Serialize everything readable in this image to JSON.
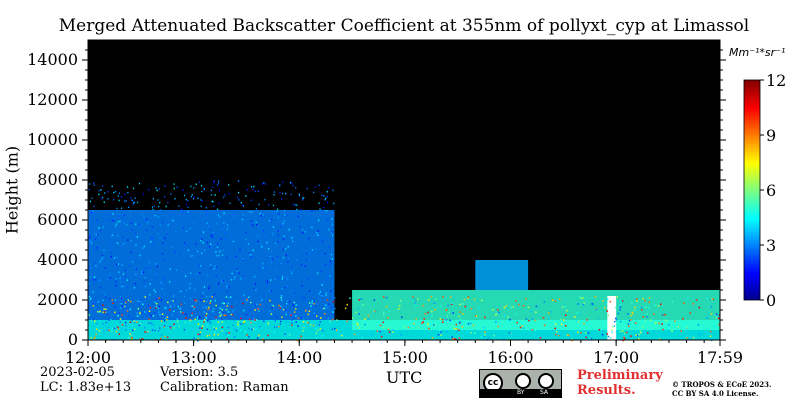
{
  "chart_data": {
    "type": "heatmap",
    "title": "Merged Attenuated Backscatter Coefficient at 355nm of pollyxt_cyp at Limassol",
    "xlabel": "UTC",
    "ylabel": "Height (m)",
    "x_ticks": [
      "12:00",
      "13:00",
      "14:00",
      "15:00",
      "16:00",
      "17:00",
      "17:59"
    ],
    "x_range": [
      "12:00",
      "17:59"
    ],
    "y_ticks": [
      0,
      2000,
      4000,
      6000,
      8000,
      10000,
      12000,
      14000
    ],
    "y_range": [
      0,
      15000
    ],
    "colorbar": {
      "unit_label": "Mm⁻¹*sr⁻¹",
      "ticks": [
        0,
        3,
        6,
        9,
        12
      ],
      "range": [
        0,
        12
      ],
      "colormap": "jet"
    },
    "background_color": "#000000",
    "layers": [
      {
        "desc": "surface layer",
        "x_start": "12:00",
        "x_end": "17:59",
        "base_m": 0,
        "top_m": 1000,
        "value": 4.5
      },
      {
        "desc": "aerosol/cloud column",
        "x_start": "12:00",
        "x_end": "14:20",
        "base_m": 1000,
        "top_m": 6500,
        "value": 3
      },
      {
        "desc": "afternoon boundary layer",
        "x_start": "14:30",
        "x_end": "17:59",
        "base_m": 500,
        "top_m": 2500,
        "value": 5
      },
      {
        "desc": "elevated layer",
        "x_start": "15:40",
        "x_end": "16:10",
        "base_m": 2500,
        "top_m": 4000,
        "value": 3.5
      },
      {
        "desc": "data gap",
        "x_start": "16:55",
        "x_end": "17:00",
        "base_m": 0,
        "top_m": 2200,
        "value": null
      }
    ]
  },
  "footer": {
    "date": "2023-02-05",
    "lc": "LC: 1.83e+13",
    "version": "Version: 3.5",
    "calibration": "Calibration: Raman",
    "preliminary_line1": "Preliminary",
    "preliminary_line2": "Results.",
    "license_line1": "© TROPOS & ECoE 2023.",
    "license_line2": "CC BY SA 4.0 License.",
    "badge_cc": "cc",
    "badge_by": "BY",
    "badge_sa": "SA"
  }
}
